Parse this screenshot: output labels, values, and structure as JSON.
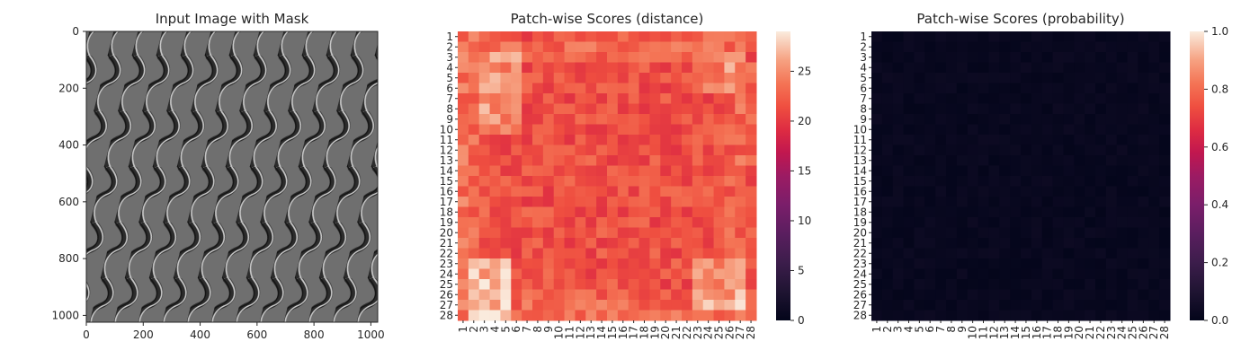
{
  "chart_data": [
    {
      "type": "image",
      "title": "Input Image with Mask",
      "x_ticks": [
        0,
        200,
        400,
        600,
        800,
        1000
      ],
      "y_ticks": [
        0,
        200,
        400,
        600,
        800,
        1000
      ],
      "xlim": [
        0,
        1024
      ],
      "ylim": [
        1024,
        0
      ],
      "icon": "grayscale-wavy-mesh-texture"
    },
    {
      "type": "heatmap",
      "title": "Patch-wise Scores (distance)",
      "rows": 28,
      "cols": 28,
      "x_tick_labels": [
        "1",
        "2",
        "3",
        "4",
        "5",
        "6",
        "7",
        "8",
        "9",
        "10",
        "11",
        "12",
        "13",
        "14",
        "15",
        "16",
        "17",
        "18",
        "19",
        "20",
        "21",
        "22",
        "23",
        "24",
        "25",
        "26",
        "27",
        "28"
      ],
      "y_tick_labels": [
        "1",
        "2",
        "3",
        "4",
        "5",
        "6",
        "7",
        "8",
        "9",
        "10",
        "11",
        "12",
        "13",
        "14",
        "15",
        "16",
        "17",
        "18",
        "19",
        "20",
        "21",
        "22",
        "23",
        "24",
        "25",
        "26",
        "27",
        "28"
      ],
      "colorbar": {
        "min": 0,
        "max": 29,
        "ticks": [
          0,
          5,
          10,
          15,
          20,
          25
        ]
      },
      "colormap": "rocket"
    },
    {
      "type": "heatmap",
      "title": "Patch-wise Scores (probability)",
      "rows": 28,
      "cols": 28,
      "x_tick_labels": [
        "1",
        "2",
        "3",
        "4",
        "5",
        "6",
        "7",
        "8",
        "9",
        "10",
        "11",
        "12",
        "13",
        "14",
        "15",
        "16",
        "17",
        "18",
        "19",
        "20",
        "21",
        "22",
        "23",
        "24",
        "25",
        "26",
        "27",
        "28"
      ],
      "y_tick_labels": [
        "1",
        "2",
        "3",
        "4",
        "5",
        "6",
        "7",
        "8",
        "9",
        "10",
        "11",
        "12",
        "13",
        "14",
        "15",
        "16",
        "17",
        "18",
        "19",
        "20",
        "21",
        "22",
        "23",
        "24",
        "25",
        "26",
        "27",
        "28"
      ],
      "colorbar": {
        "min": 0.0,
        "max": 1.0,
        "ticks": [
          "0.0",
          "0.2",
          "0.4",
          "0.6",
          "0.8",
          "1.0"
        ]
      },
      "colormap": "rocket"
    }
  ]
}
